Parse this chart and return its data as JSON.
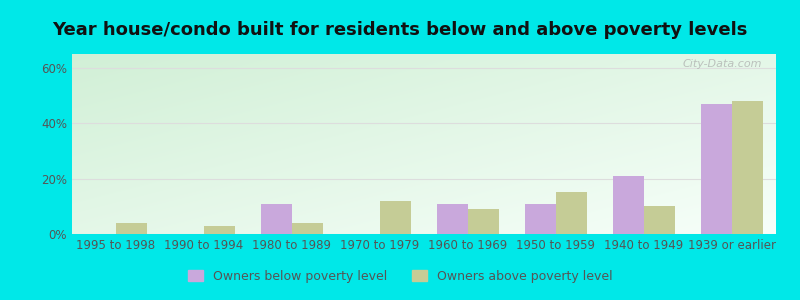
{
  "title": "Year house/condo built for residents below and above poverty levels",
  "categories": [
    "1995 to 1998",
    "1990 to 1994",
    "1980 to 1989",
    "1970 to 1979",
    "1960 to 1969",
    "1950 to 1959",
    "1940 to 1949",
    "1939 or earlier"
  ],
  "below_poverty": [
    0,
    0,
    11,
    0,
    11,
    11,
    21,
    47
  ],
  "above_poverty": [
    4,
    3,
    4,
    12,
    9,
    15,
    10,
    48
  ],
  "below_color": "#c9a8dc",
  "above_color": "#c5cc96",
  "ylabel_ticks": [
    0,
    20,
    40,
    60
  ],
  "ylim": [
    0,
    65
  ],
  "outer_bg": "#00e8e8",
  "legend_below": "Owners below poverty level",
  "legend_above": "Owners above poverty level",
  "watermark": "City-Data.com",
  "tick_color": "#555555",
  "grid_color": "#dddddd",
  "title_fontsize": 13,
  "axis_fontsize": 8.5,
  "legend_fontsize": 9
}
